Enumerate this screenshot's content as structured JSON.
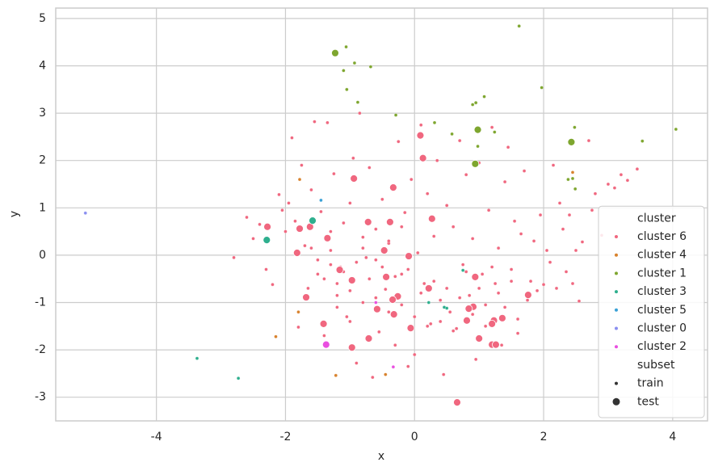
{
  "chart_data": {
    "type": "scatter",
    "xlabel": "x",
    "ylabel": "y",
    "xlim": [
      -5.56,
      4.54
    ],
    "ylim": [
      -3.5,
      5.22
    ],
    "xticks": [
      -4,
      -2,
      0,
      2,
      4
    ],
    "yticks": [
      -3,
      -2,
      -1,
      0,
      1,
      2,
      3,
      4,
      5
    ],
    "grid": true,
    "legend_position": "lower right",
    "legend": {
      "hue_title": "cluster",
      "size_title": "subset",
      "size_labels": [
        "train",
        "test"
      ]
    },
    "series": [
      {
        "name": "cluster 6",
        "color": "#f0677f",
        "subsets": [
          {
            "x": [
              -2.8,
              -2.6,
              -2.5,
              -2.4,
              -2.3,
              -2.2,
              -2.1,
              -2.05,
              -2.0,
              -1.95,
              -1.9,
              -1.85,
              -1.8,
              -1.75,
              -1.7,
              -1.65,
              -1.6,
              -1.55,
              -1.5,
              -1.45,
              -1.4,
              -1.35,
              -1.3,
              -1.25,
              -1.2,
              -1.15,
              -1.1,
              -1.05,
              -1.0,
              -0.95,
              -0.9,
              -0.85,
              -0.8,
              -0.75,
              -0.7,
              -0.65,
              -0.6,
              -0.55,
              -0.5,
              -0.45,
              -0.4,
              -0.35,
              -0.3,
              -0.25,
              -0.2,
              -0.15,
              -0.1,
              -0.05,
              0.0,
              0.05,
              0.1,
              0.15,
              0.2,
              0.25,
              0.3,
              0.35,
              0.4,
              0.45,
              0.5,
              0.55,
              0.6,
              0.65,
              0.7,
              0.75,
              0.8,
              0.85,
              0.9,
              0.95,
              1.0,
              1.05,
              1.1,
              1.15,
              1.2,
              1.25,
              1.3,
              1.35,
              1.4,
              1.45,
              1.5,
              1.55,
              1.6,
              1.65,
              1.7,
              1.75,
              1.8,
              1.85,
              1.9,
              1.95,
              2.0,
              2.05,
              2.1,
              2.15,
              2.2,
              2.25,
              2.3,
              2.35,
              2.4,
              2.45,
              2.5,
              2.55,
              2.6,
              2.7,
              2.75,
              2.8,
              2.9,
              3.0,
              3.1,
              3.2,
              3.3,
              3.45,
              -1.3,
              -1.1,
              -0.9,
              -0.7,
              -0.5,
              -0.3,
              -0.1,
              0.1,
              0.3,
              0.5,
              -1.2,
              -1.0,
              -0.8,
              -0.6,
              -0.4,
              -0.2,
              0.0,
              0.2,
              0.4,
              0.6,
              0.7,
              0.8,
              0.9,
              1.0,
              1.1,
              1.2,
              1.3,
              1.4,
              1.5,
              1.6,
              -1.6,
              -1.5,
              -1.4,
              -1.3,
              -1.2,
              -1.0,
              -0.8,
              -0.6,
              -0.4,
              -0.2
            ],
            "y": [
              -0.05,
              0.8,
              0.35,
              0.65,
              -0.3,
              -0.62,
              1.28,
              0.95,
              0.5,
              1.1,
              2.48,
              0.72,
              -1.52,
              1.9,
              0.2,
              -0.7,
              1.38,
              2.82,
              -0.1,
              0.92,
              -0.5,
              2.8,
              0.1,
              1.72,
              -0.85,
              -0.25,
              0.68,
              -1.3,
              1.1,
              2.05,
              -2.28,
              3.0,
              0.38,
              -0.05,
              1.85,
              -2.58,
              0.55,
              -1.62,
              1.18,
              -0.72,
              0.25,
              1.45,
              -1.9,
              2.4,
              -0.4,
              0.9,
              -2.35,
              1.6,
              -2.1,
              0.05,
              2.75,
              -0.6,
              1.3,
              -1.45,
              0.4,
              2.0,
              -0.95,
              -2.52,
              1.05,
              -1.2,
              0.6,
              -1.55,
              2.42,
              -0.2,
              1.7,
              -0.85,
              0.35,
              -2.2,
              1.95,
              -0.4,
              -1.05,
              0.95,
              2.7,
              -0.6,
              0.15,
              -1.9,
              1.55,
              2.28,
              -0.3,
              0.72,
              -1.65,
              0.45,
              1.78,
              -0.95,
              -0.55,
              0.3,
              -0.75,
              0.85,
              -0.62,
              0.1,
              -0.15,
              1.9,
              -0.7,
              1.1,
              0.55,
              -0.35,
              0.85,
              -0.6,
              0.1,
              -0.97,
              0.28,
              2.42,
              0.95,
              1.3,
              0.42,
              1.5,
              1.42,
              1.7,
              1.58,
              1.82,
              -0.2,
              -0.35,
              -0.15,
              -0.5,
              -0.25,
              -0.45,
              -0.3,
              -0.8,
              -0.55,
              -0.7,
              -0.6,
              -0.75,
              -1.0,
              -0.9,
              -1.2,
              -1.05,
              -1.3,
              -1.5,
              -1.4,
              -1.6,
              -0.9,
              -0.35,
              -1.25,
              -0.7,
              -1.5,
              -0.25,
              -0.8,
              -1.1,
              -0.55,
              -1.35,
              0.15,
              -0.4,
              -1.7,
              0.5,
              -1.1,
              -1.4,
              0.15,
              -0.1,
              0.3,
              0.6
            ]
          },
          {
            "x": [
              0.09,
              0.13,
              -0.94,
              -0.33,
              0.27,
              -0.72,
              -0.38,
              -2.28,
              -1.62,
              -1.78,
              -1.35,
              -0.47,
              -0.09,
              -1.82,
              -0.97,
              -1.16,
              -0.44,
              0.94,
              0.22,
              -0.26,
              -0.34,
              -1.68,
              1.76,
              0.91,
              0.84,
              -0.58,
              -0.32,
              1.36,
              1.23,
              0.81,
              1.2,
              -1.41,
              -0.06,
              -0.71,
              1.0,
              1.2,
              1.26,
              -0.97,
              0.66
            ],
            "y": [
              2.53,
              2.05,
              1.62,
              1.43,
              0.77,
              0.7,
              0.7,
              0.6,
              0.6,
              0.56,
              0.36,
              0.1,
              -0.02,
              0.05,
              -0.53,
              -0.31,
              -0.46,
              -0.46,
              -0.7,
              -0.87,
              -0.94,
              -0.89,
              -0.84,
              -1.09,
              -1.13,
              -1.14,
              -1.25,
              -1.33,
              -1.38,
              -1.38,
              -1.45,
              -1.45,
              -1.54,
              -1.76,
              -1.76,
              -1.89,
              -1.89,
              -1.95,
              -3.11
            ]
          }
        ]
      },
      {
        "name": "cluster 4",
        "color": "#d8822d",
        "subsets": [
          {
            "x": [
              -1.78,
              -2.15,
              -1.22,
              -0.45,
              -1.8,
              2.45
            ],
            "y": [
              1.6,
              -1.72,
              -2.54,
              -2.52,
              -1.2,
              1.75
            ]
          },
          {
            "x": [],
            "y": []
          }
        ]
      },
      {
        "name": "cluster 1",
        "color": "#7ea62f",
        "subsets": [
          {
            "x": [
              -1.06,
              -1.1,
              -0.93,
              -0.68,
              1.62,
              1.97,
              -1.05,
              -0.88,
              -0.29,
              0.31,
              0.95,
              1.08,
              0.9,
              0.58,
              1.24,
              2.48,
              4.05,
              3.53,
              0.98,
              2.45,
              2.49,
              2.38
            ],
            "y": [
              4.4,
              3.9,
              4.06,
              3.98,
              4.84,
              3.54,
              3.5,
              3.23,
              2.96,
              2.8,
              3.22,
              3.35,
              3.18,
              2.56,
              2.6,
              2.7,
              2.66,
              2.41,
              2.3,
              1.62,
              1.4,
              1.6
            ]
          },
          {
            "x": [
              -1.23,
              0.98,
              2.43,
              0.94
            ],
            "y": [
              4.27,
              2.65,
              2.39,
              1.93
            ]
          }
        ]
      },
      {
        "name": "cluster 3",
        "color": "#2eaf8e",
        "subsets": [
          {
            "x": [
              -3.37,
              -2.73,
              0.22,
              0.46,
              0.5,
              0.75
            ],
            "y": [
              -2.18,
              -2.6,
              -1.0,
              -1.1,
              -1.12,
              -0.32
            ]
          },
          {
            "x": [
              -1.58,
              -2.29
            ],
            "y": [
              0.73,
              0.32
            ]
          }
        ]
      },
      {
        "name": "cluster 5",
        "color": "#3aa1d6",
        "subsets": [
          {
            "x": [
              -1.45
            ],
            "y": [
              1.16
            ]
          },
          {
            "x": [],
            "y": []
          }
        ]
      },
      {
        "name": "cluster 0",
        "color": "#8a8ff0",
        "subsets": [
          {
            "x": [
              -5.1
            ],
            "y": [
              0.89
            ]
          },
          {
            "x": [],
            "y": []
          }
        ]
      },
      {
        "name": "cluster 2",
        "color": "#e94fe0",
        "subsets": [
          {
            "x": [
              -0.33,
              -0.6
            ],
            "y": [
              -2.36,
              -1.0
            ]
          },
          {
            "x": [
              -1.37
            ],
            "y": [
              -1.89
            ]
          }
        ]
      }
    ]
  }
}
